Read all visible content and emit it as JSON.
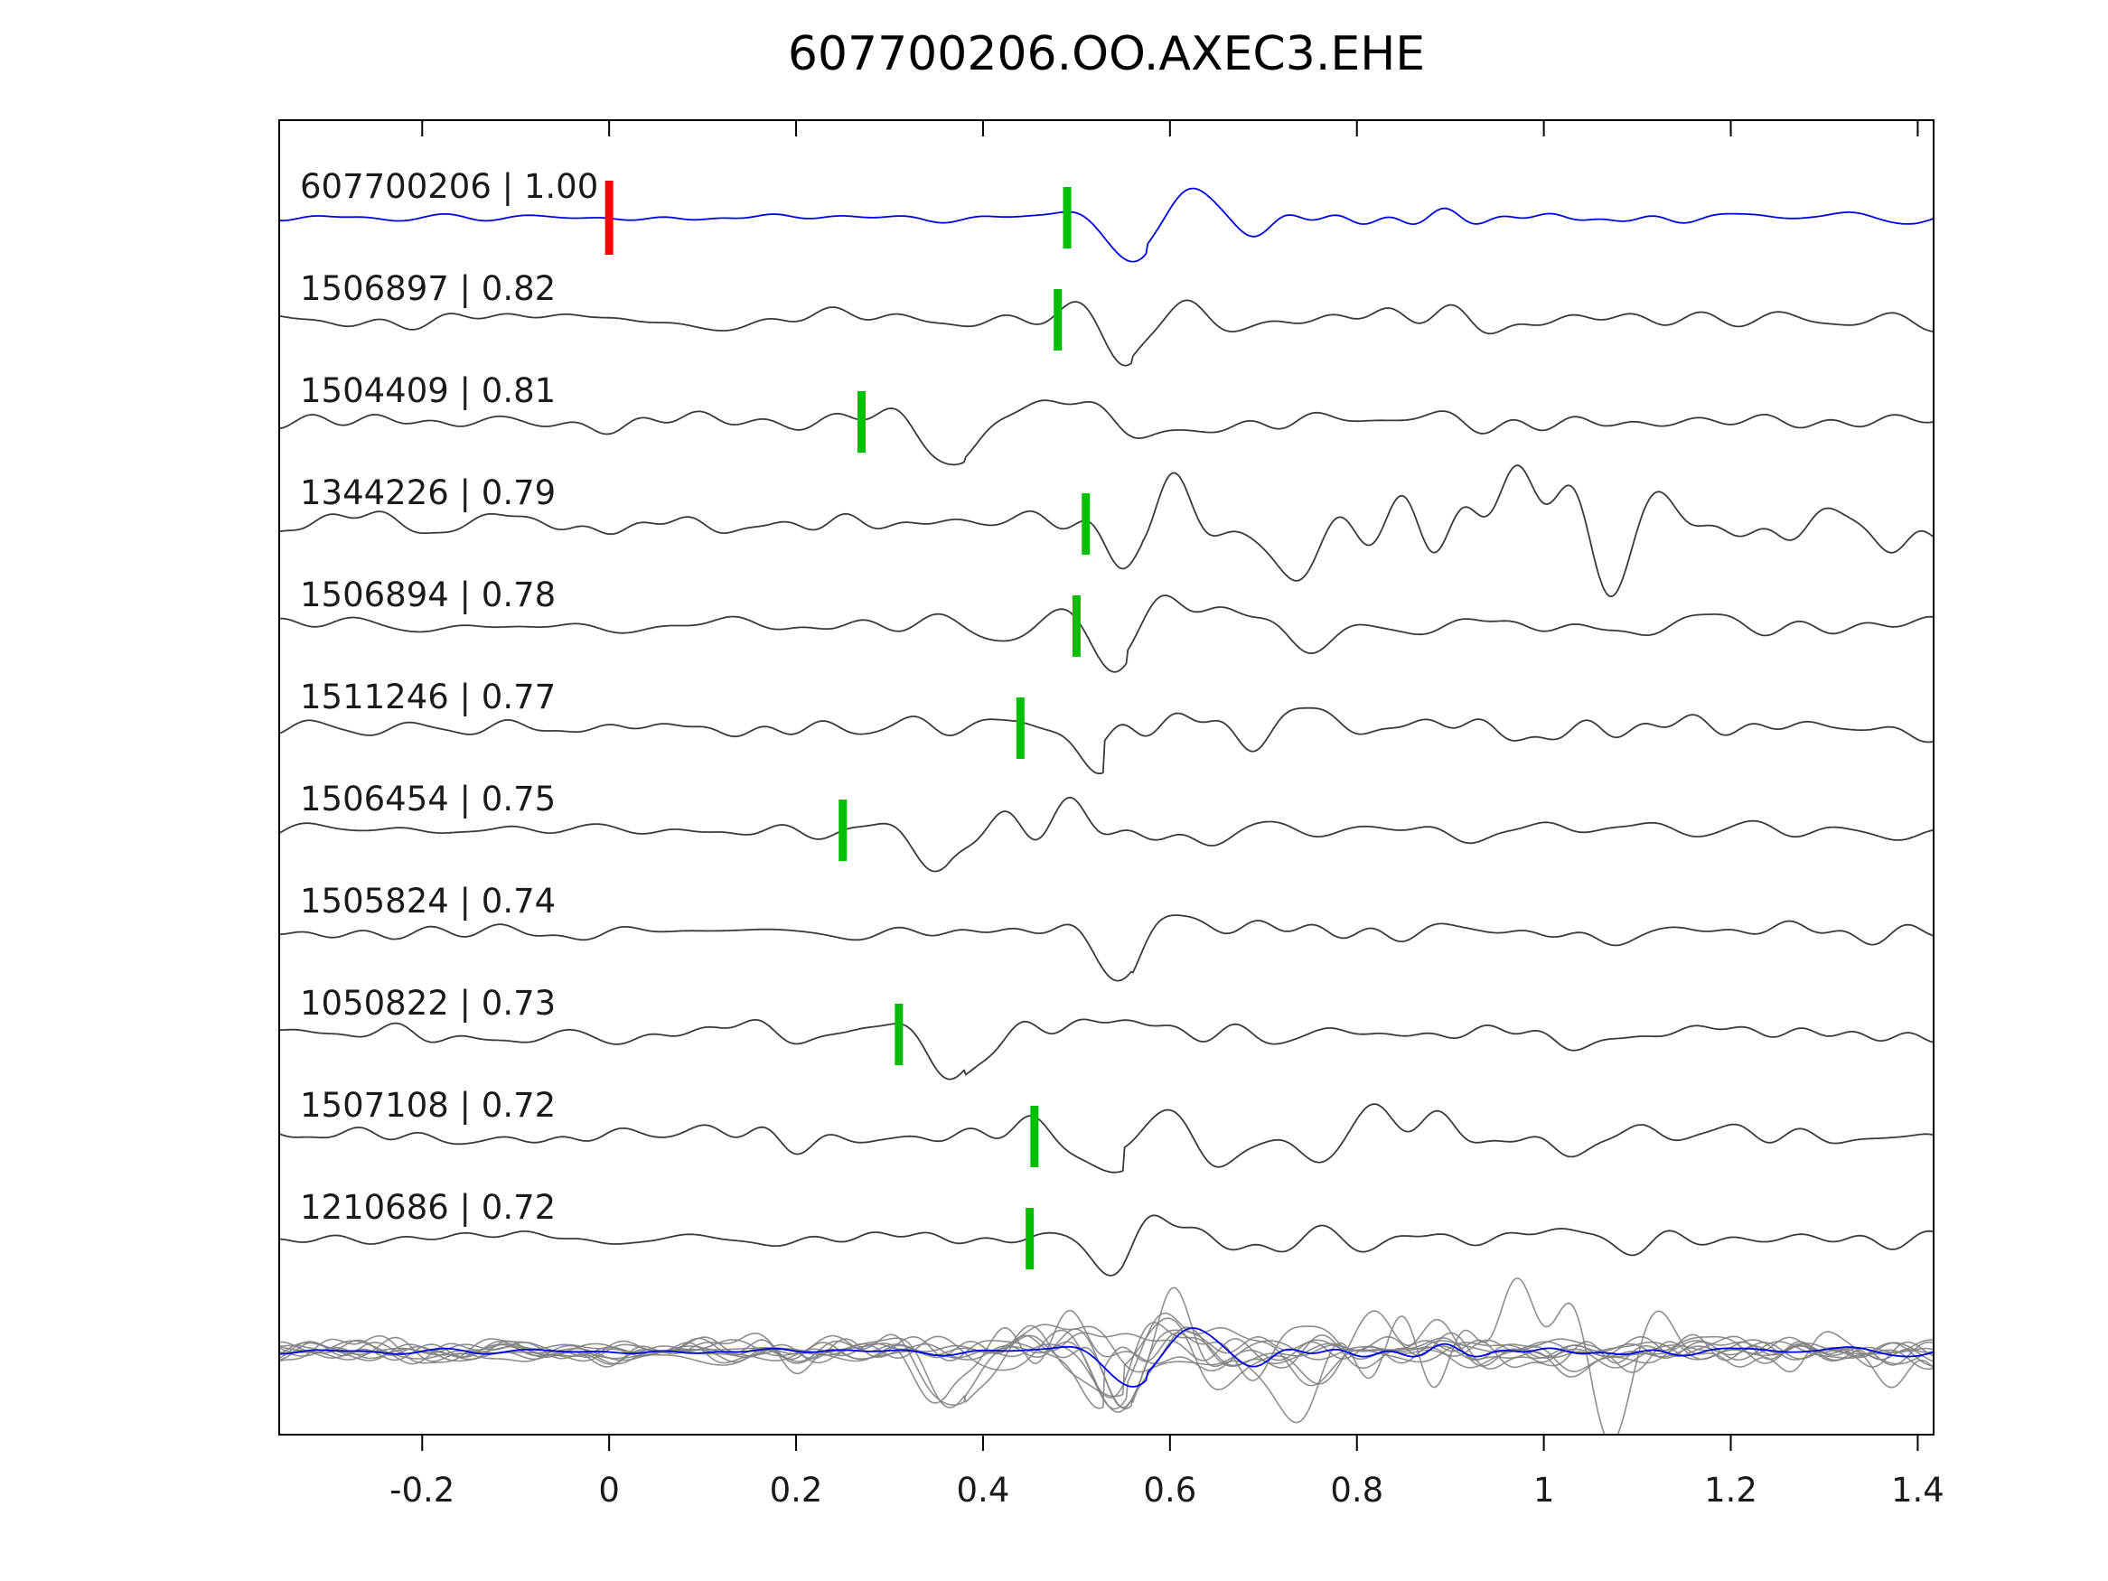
{
  "title": "607700206.OO.AXEC3.EHE",
  "colors": {
    "reference_trace": "#0000e6",
    "match_trace": "#3a3a3a",
    "overlay_trace": "#828282",
    "pick_marker": "#00bf00",
    "reference_marker": "#ff0000",
    "axis": "#000000",
    "text": "#1a1a1a"
  },
  "chart_data": {
    "type": "line",
    "title": "607700206.OO.AXEC3.EHE",
    "xlim": [
      -0.35,
      1.42
    ],
    "x_ticks": [
      -0.2,
      0,
      0.2,
      0.4,
      0.6,
      0.8,
      1,
      1.2,
      1.4
    ],
    "x_tick_labels": [
      "-0.2",
      "0",
      "0.2",
      "0.4",
      "0.6",
      "0.8",
      "1",
      "1.2",
      "1.4"
    ],
    "ylabel": "",
    "xlabel": "",
    "grid": false,
    "legend": "none",
    "overlay_row": true,
    "traces": [
      {
        "id": "607700206",
        "label": "607700206 | 1.00",
        "correlation": 1.0,
        "pick_time": 0.49,
        "reference_marker_time": 0.0,
        "arrival_time": 0.575,
        "is_reference": true
      },
      {
        "id": "1506897",
        "label": "1506897 | 0.82",
        "correlation": 0.82,
        "pick_time": 0.48,
        "arrival_time": 0.56,
        "is_reference": false
      },
      {
        "id": "1504409",
        "label": "1504409 | 0.81",
        "correlation": 0.81,
        "pick_time": 0.27,
        "arrival_time": 0.38,
        "is_reference": false
      },
      {
        "id": "1344226",
        "label": "1344226 | 0.79",
        "correlation": 0.79,
        "pick_time": 0.51,
        "arrival_time": 0.57,
        "is_reference": false
      },
      {
        "id": "1506894",
        "label": "1506894 | 0.78",
        "correlation": 0.78,
        "pick_time": 0.5,
        "arrival_time": 0.555,
        "is_reference": false
      },
      {
        "id": "1511246",
        "label": "1511246 | 0.77",
        "correlation": 0.77,
        "pick_time": 0.44,
        "arrival_time": 0.53,
        "is_reference": false
      },
      {
        "id": "1506454",
        "label": "1506454 | 0.75",
        "correlation": 0.75,
        "pick_time": 0.25,
        "arrival_time": 0.36,
        "is_reference": false
      },
      {
        "id": "1505824",
        "label": "1505824 | 0.74",
        "correlation": 0.74,
        "pick_time": null,
        "arrival_time": 0.56,
        "is_reference": false
      },
      {
        "id": "1050822",
        "label": "1050822 | 0.73",
        "correlation": 0.73,
        "pick_time": 0.31,
        "arrival_time": 0.38,
        "is_reference": false
      },
      {
        "id": "1507108",
        "label": "1507108 | 0.72",
        "correlation": 0.72,
        "pick_time": 0.455,
        "arrival_time": 0.55,
        "is_reference": false
      },
      {
        "id": "1210686",
        "label": "1210686 | 0.72",
        "correlation": 0.72,
        "pick_time": 0.45,
        "arrival_time": 0.55,
        "is_reference": false
      }
    ]
  }
}
